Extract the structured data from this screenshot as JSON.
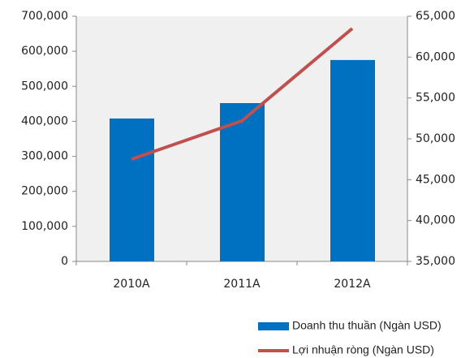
{
  "chart_data": {
    "type": "bar",
    "categories": [
      "2010A",
      "2011A",
      "2012A"
    ],
    "series": [
      {
        "name": "Doanh thu thuần (Ngàn USD)",
        "type": "bar",
        "color": "#0070c0",
        "values": [
          408000,
          452000,
          575000
        ]
      },
      {
        "name": "Lợi nhuận ròng (Ngàn USD)",
        "type": "line",
        "axis": "y2",
        "color": "#c0504d",
        "values": [
          47500,
          52200,
          63500
        ]
      }
    ],
    "ylim": [
      0,
      700000
    ],
    "yticks": [
      0,
      {
        "value": 100000,
        "label": "100,000"
      },
      {
        "value": 200000,
        "label": "200,000"
      },
      {
        "value": 300000,
        "label": "300,000"
      },
      {
        "value": 400000,
        "label": "400,000"
      },
      {
        "value": 500000,
        "label": "500,000"
      },
      {
        "value": 600000,
        "label": "600,000"
      },
      {
        "value": 700000,
        "label": "700,000"
      }
    ],
    "y2lim": [
      35000,
      65000
    ],
    "y2ticks": [
      {
        "value": 35000,
        "label": "35,000"
      },
      {
        "value": 40000,
        "label": "40,000"
      },
      {
        "value": 45000,
        "label": "45,000"
      },
      {
        "value": 50000,
        "label": "50,000"
      },
      {
        "value": 55000,
        "label": "55,000"
      },
      {
        "value": 60000,
        "label": "60,000"
      },
      {
        "value": 65000,
        "label": "65,000"
      }
    ],
    "legend": "bottom-right"
  }
}
